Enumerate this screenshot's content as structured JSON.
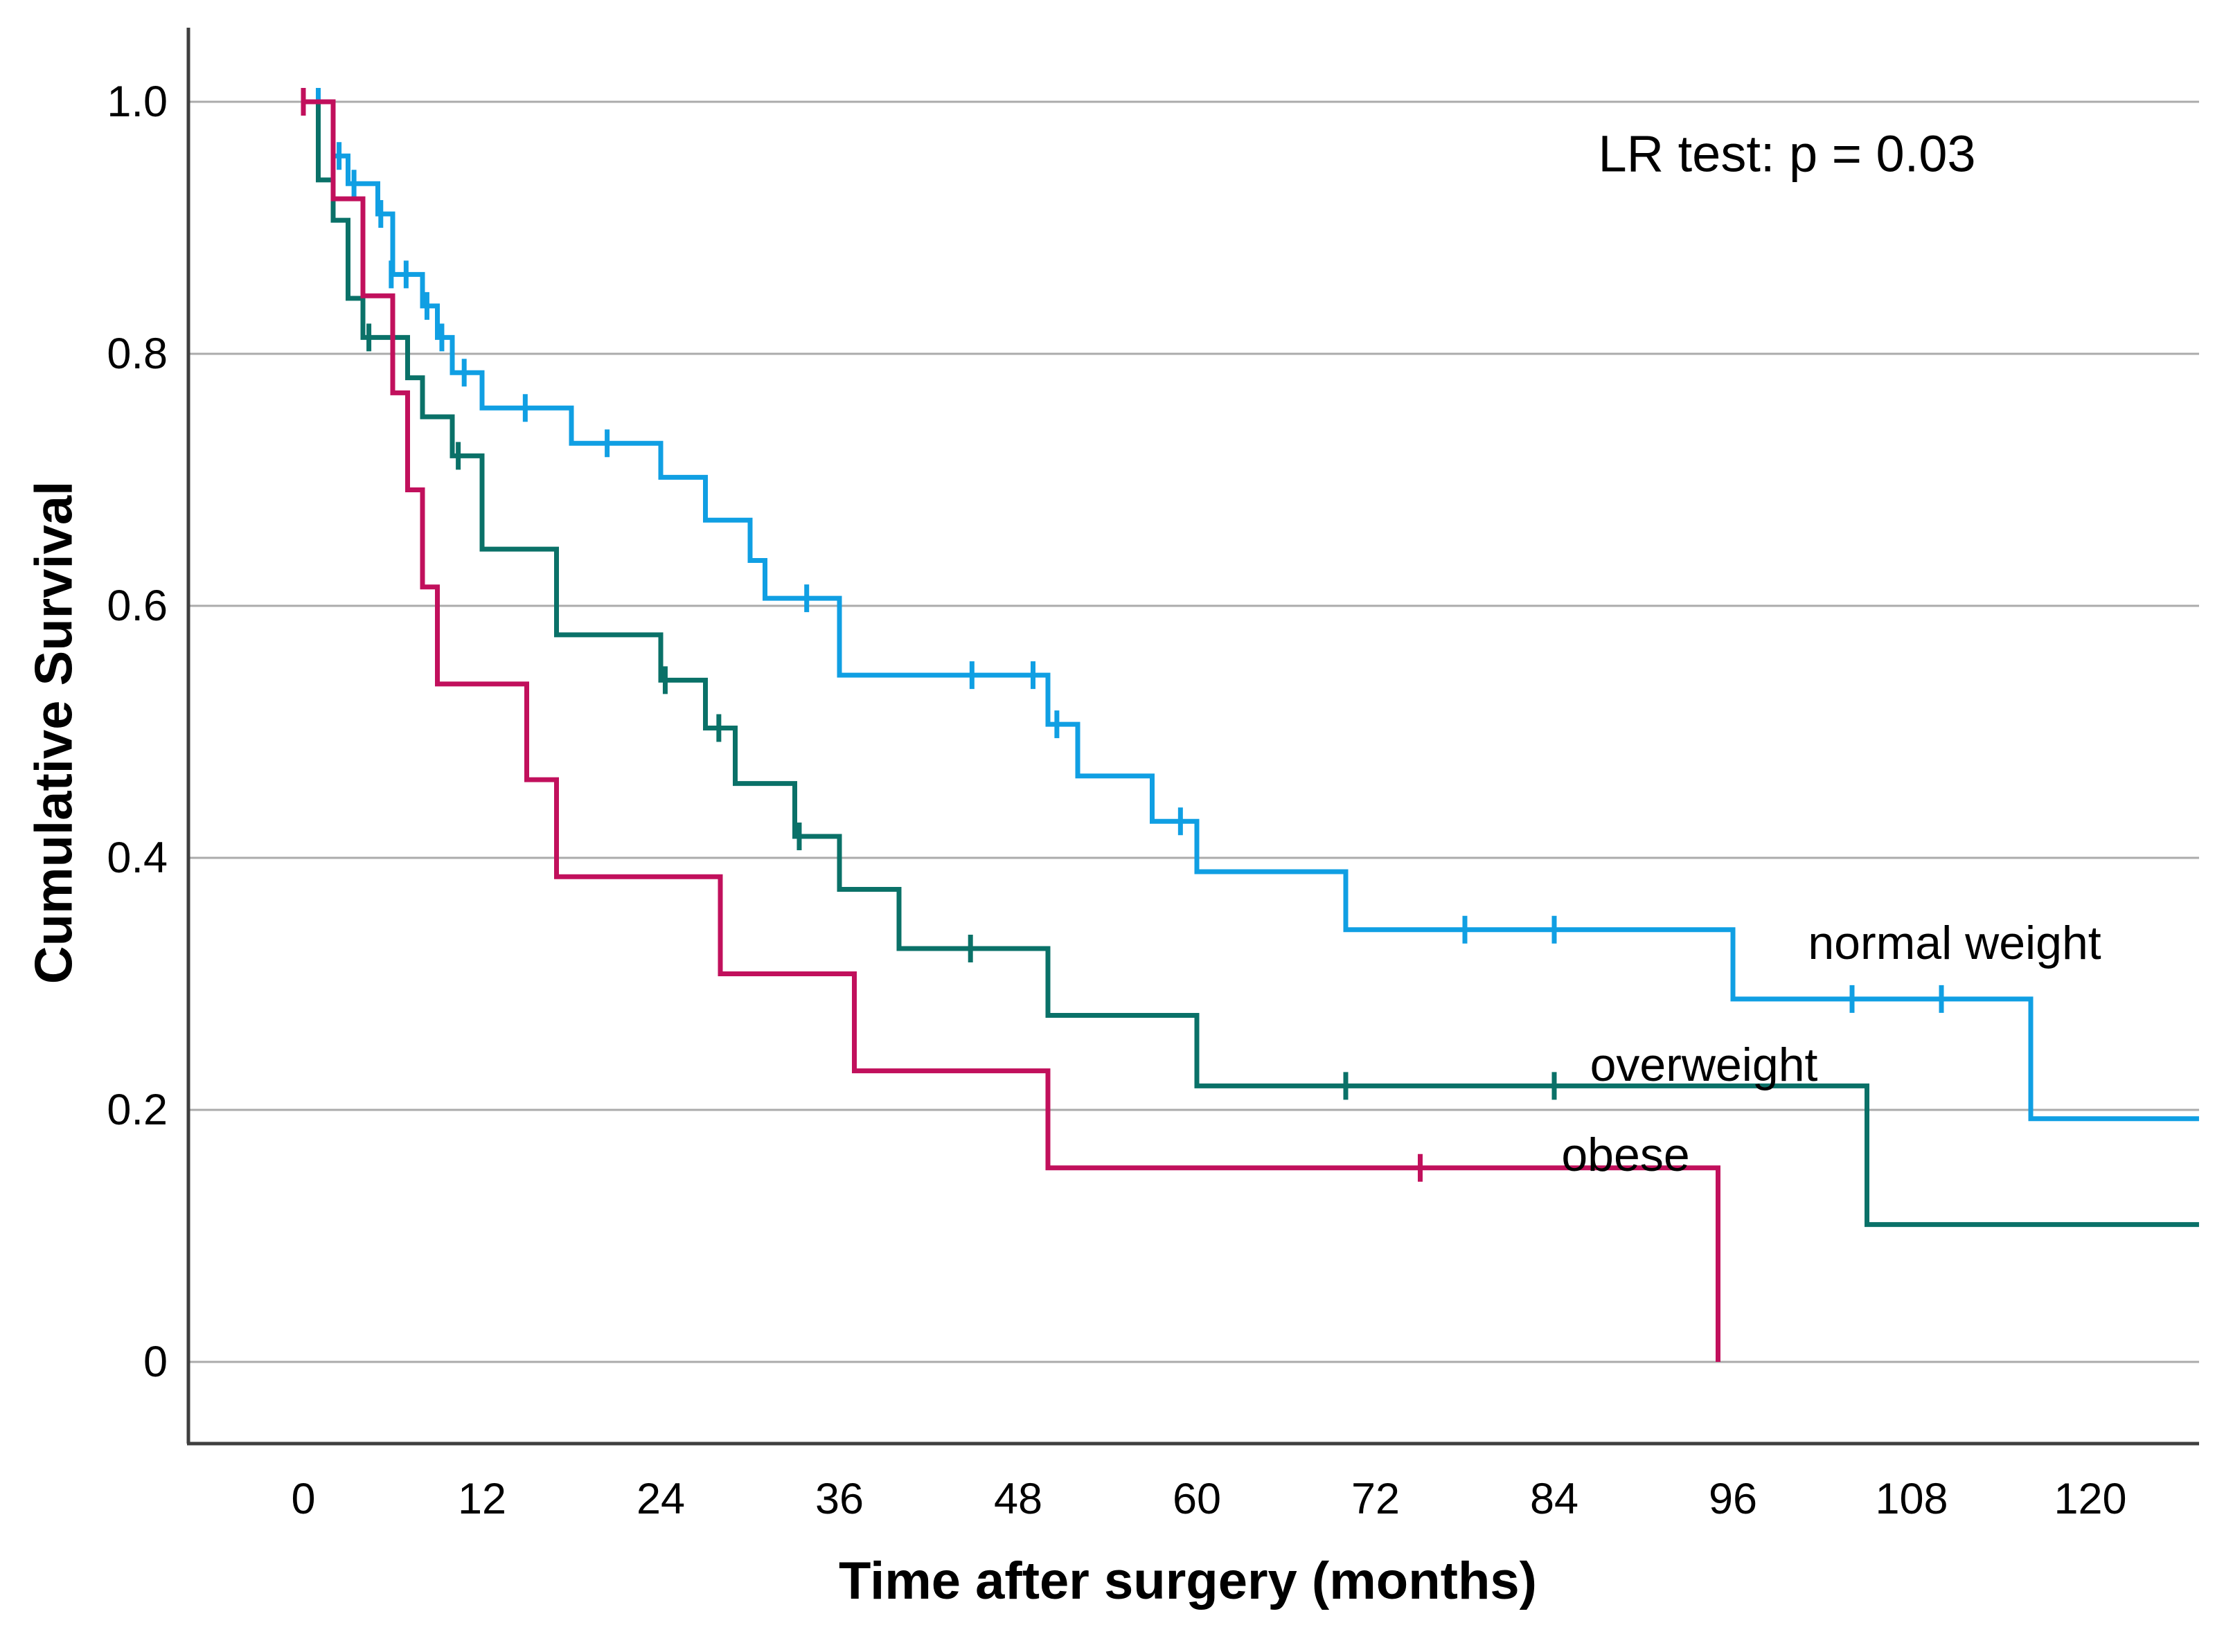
{
  "figure": {
    "y_axis_title": "Cumulative Survival",
    "x_axis_title": "Time after surgery (months)",
    "annotation": "LR test: p = 0.03",
    "background": "#ffffff",
    "axis_color": "#3f3f3f",
    "grid_color": "#ababab",
    "text_color": "#000000"
  },
  "chart_data": {
    "type": "line",
    "subtype": "kaplan-meier-step-survival",
    "title": "",
    "xlabel": "Time after surgery (months)",
    "ylabel": "Cumulative Survival",
    "annotation": "LR test: p = 0.03",
    "xlim": [
      -7.7,
      127.3
    ],
    "ylim": [
      -0.065,
      1.12
    ],
    "grid": "horizontal",
    "legend_position": "inline-labels",
    "x_ticks": [
      {
        "v": 0,
        "label": "0"
      },
      {
        "v": 12,
        "label": "12"
      },
      {
        "v": 24,
        "label": "24"
      },
      {
        "v": 36,
        "label": "36"
      },
      {
        "v": 48,
        "label": "48"
      },
      {
        "v": 60,
        "label": "60"
      },
      {
        "v": 72,
        "label": "72"
      },
      {
        "v": 84,
        "label": "84"
      },
      {
        "v": 96,
        "label": "96"
      },
      {
        "v": 108,
        "label": "108"
      },
      {
        "v": 120,
        "label": "120"
      }
    ],
    "y_ticks": [
      {
        "v": 1.0,
        "label": "1.0"
      },
      {
        "v": 0.8,
        "label": "0.8"
      },
      {
        "v": 0.6,
        "label": "0.6"
      },
      {
        "v": 0.4,
        "label": "0.4"
      },
      {
        "v": 0.2,
        "label": "0.2"
      },
      {
        "v": 0.0,
        "label": "0"
      }
    ],
    "series": [
      {
        "name": "normal weight",
        "label": "normal weight",
        "color": "#109fe3",
        "end_t": 127.3,
        "steps": [
          [
            0,
            1.0
          ],
          [
            2,
            0.957
          ],
          [
            3,
            0.935
          ],
          [
            5,
            0.911
          ],
          [
            6,
            0.863
          ],
          [
            8,
            0.838
          ],
          [
            9,
            0.813
          ],
          [
            10,
            0.785
          ],
          [
            12,
            0.757
          ],
          [
            18,
            0.729
          ],
          [
            24,
            0.702
          ],
          [
            27,
            0.668
          ],
          [
            30,
            0.636
          ],
          [
            31,
            0.606
          ],
          [
            36,
            0.545
          ],
          [
            50,
            0.506
          ],
          [
            52,
            0.465
          ],
          [
            57,
            0.429
          ],
          [
            60,
            0.389
          ],
          [
            70,
            0.343
          ],
          [
            96,
            0.288
          ],
          [
            116,
            0.193
          ]
        ],
        "censors": [
          [
            1,
            1.0
          ],
          [
            2.4,
            0.957
          ],
          [
            3.4,
            0.935
          ],
          [
            5.2,
            0.911
          ],
          [
            5.9,
            0.863
          ],
          [
            6.9,
            0.863
          ],
          [
            8.3,
            0.838
          ],
          [
            9.3,
            0.813
          ],
          [
            10.8,
            0.785
          ],
          [
            14.9,
            0.757
          ],
          [
            20.4,
            0.729
          ],
          [
            33.8,
            0.606
          ],
          [
            44.9,
            0.545
          ],
          [
            49,
            0.545
          ],
          [
            50.6,
            0.506
          ],
          [
            58.9,
            0.429
          ],
          [
            78,
            0.343
          ],
          [
            84,
            0.343
          ],
          [
            104,
            0.288
          ],
          [
            110,
            0.288
          ]
        ]
      },
      {
        "name": "overweight",
        "label": "overweight",
        "color": "#0a7168",
        "end_t": 127.3,
        "steps": [
          [
            0,
            1.0
          ],
          [
            1,
            0.938
          ],
          [
            2,
            0.906
          ],
          [
            3,
            0.844
          ],
          [
            4,
            0.813
          ],
          [
            7,
            0.781
          ],
          [
            8,
            0.75
          ],
          [
            10,
            0.719
          ],
          [
            12,
            0.645
          ],
          [
            17,
            0.577
          ],
          [
            24,
            0.541
          ],
          [
            27,
            0.503
          ],
          [
            29,
            0.459
          ],
          [
            33,
            0.417
          ],
          [
            36,
            0.375
          ],
          [
            40,
            0.328
          ],
          [
            50,
            0.275
          ],
          [
            60,
            0.219
          ],
          [
            105,
            0.109
          ]
        ],
        "censors": [
          [
            4.4,
            0.813
          ],
          [
            10.4,
            0.719
          ],
          [
            24.3,
            0.541
          ],
          [
            27.9,
            0.503
          ],
          [
            33.3,
            0.417
          ],
          [
            44.8,
            0.328
          ],
          [
            70,
            0.219
          ],
          [
            84,
            0.219
          ]
        ]
      },
      {
        "name": "obese",
        "label": "obese",
        "color": "#c1105c",
        "end_t": 95,
        "steps": [
          [
            0,
            1.0
          ],
          [
            2,
            0.923
          ],
          [
            4,
            0.846
          ],
          [
            6,
            0.769
          ],
          [
            7,
            0.692
          ],
          [
            8,
            0.615
          ],
          [
            9,
            0.538
          ],
          [
            15,
            0.462
          ],
          [
            17,
            0.385
          ],
          [
            28,
            0.308
          ],
          [
            37,
            0.231
          ],
          [
            50,
            0.154
          ],
          [
            95,
            0.0
          ]
        ],
        "censors": [
          [
            0,
            1.0
          ],
          [
            75,
            0.154
          ]
        ]
      }
    ]
  }
}
